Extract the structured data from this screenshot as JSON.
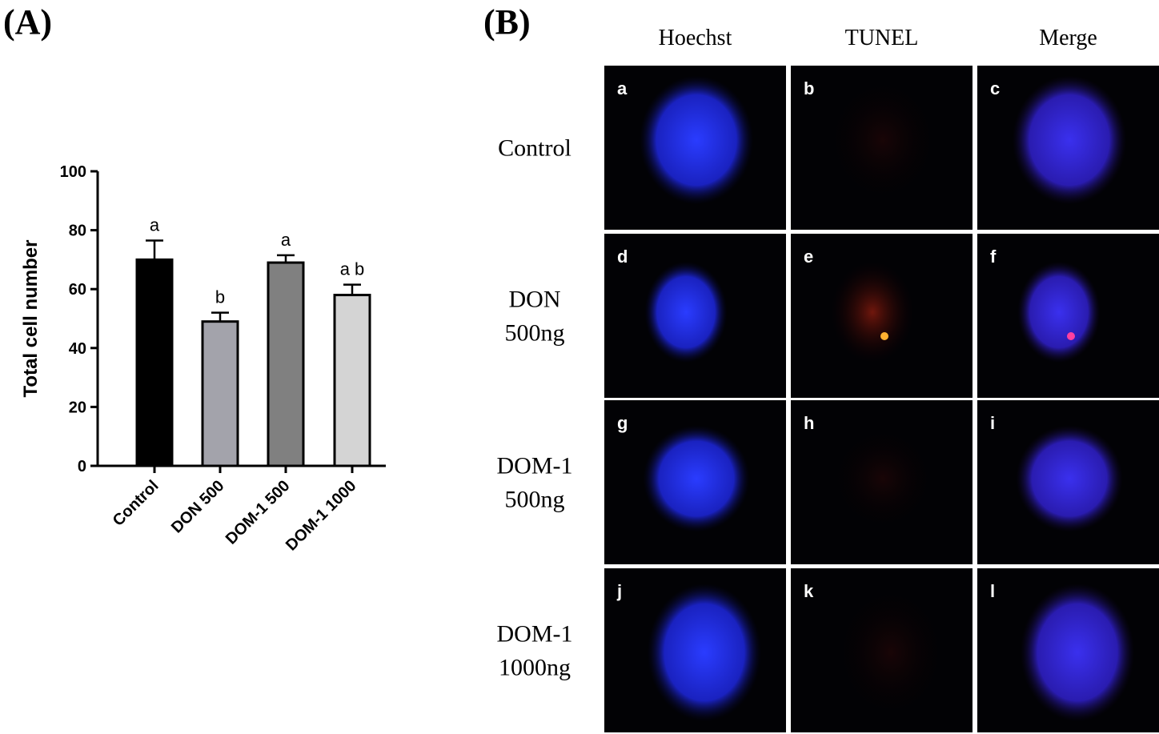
{
  "panel_labels": [
    "(A)",
    "(B)"
  ],
  "chart_data": {
    "type": "bar",
    "ylabel": "Total cell number",
    "categories": [
      "Control",
      "DON 500",
      "DOM-1 500",
      "DOM-1 1000"
    ],
    "values": [
      70,
      49,
      69,
      58
    ],
    "errors": [
      6.5,
      3,
      2.5,
      3.5
    ],
    "annotations": [
      "a",
      "b",
      "a",
      "a b"
    ],
    "colors": [
      "#000000",
      "#a3a3ab",
      "#808080",
      "#d4d4d4"
    ],
    "ylim": [
      0,
      100
    ],
    "yticks": [
      0,
      20,
      40,
      60,
      80,
      100
    ]
  },
  "micrographs": {
    "columns": [
      "Hoechst",
      "TUNEL",
      "Merge"
    ],
    "rows": [
      [
        "Control"
      ],
      [
        "DON",
        "500ng"
      ],
      [
        "DOM-1",
        "500ng"
      ],
      [
        "DOM-1",
        "1000ng"
      ]
    ],
    "image_labels": [
      "a",
      "b",
      "c",
      "d",
      "e",
      "f",
      "g",
      "h",
      "i",
      "j",
      "k",
      "l"
    ]
  }
}
